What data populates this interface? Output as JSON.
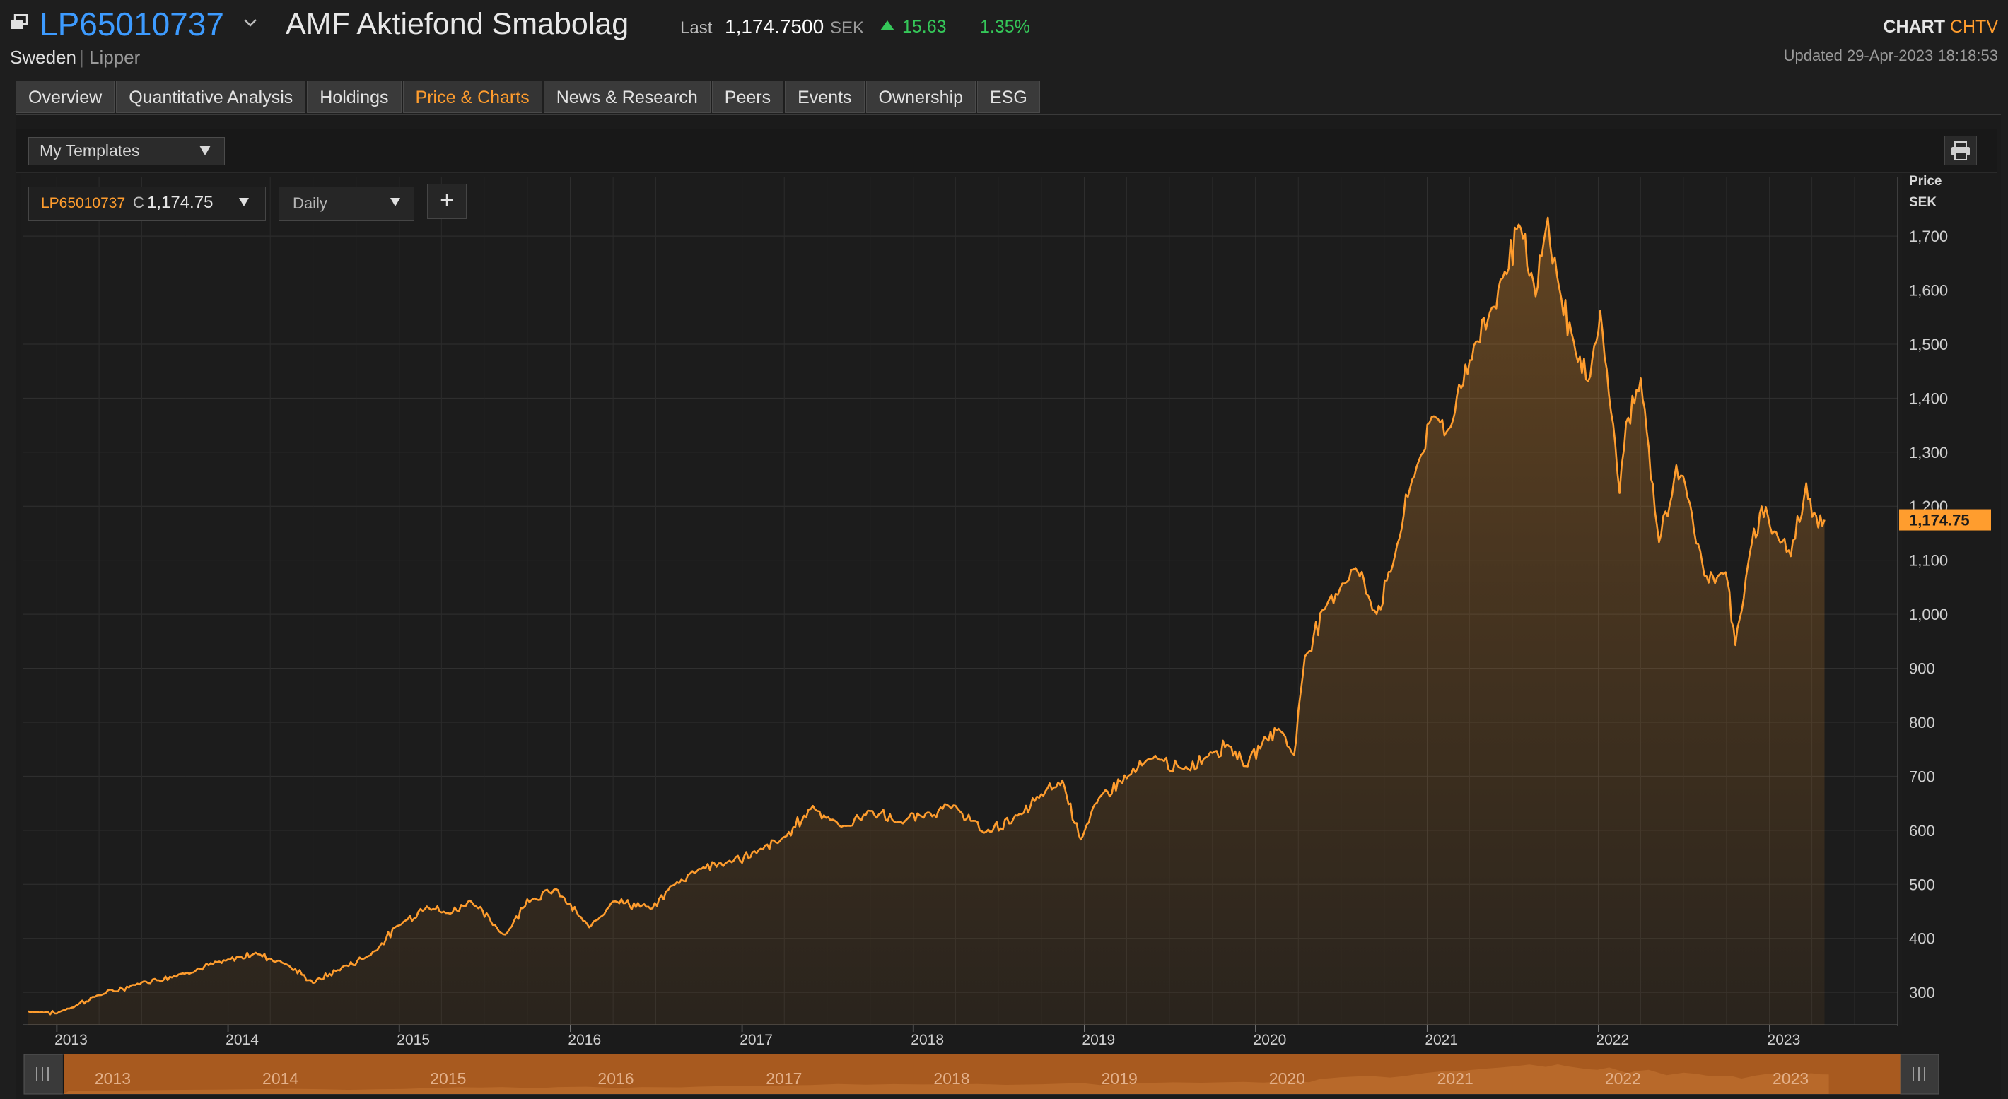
{
  "header": {
    "ric": "LP65010737",
    "name": "AMF Aktiefond Smabolag",
    "last_label": "Last",
    "last_value": "1,174.7500",
    "currency": "SEK",
    "change": "15.63",
    "change_pct": "1.35%",
    "country": "Sweden",
    "separator": "|",
    "source": "Lipper",
    "app_name": "CHART",
    "app_code": "CHTV",
    "updated": "Updated 29-Apr-2023   18:18:53",
    "up_color": "#35c759"
  },
  "tabs": [
    {
      "label": "Overview",
      "active": false
    },
    {
      "label": "Quantitative Analysis",
      "active": false
    },
    {
      "label": "Holdings",
      "active": false
    },
    {
      "label": "Price & Charts",
      "active": true
    },
    {
      "label": "News & Research",
      "active": false
    },
    {
      "label": "Peers",
      "active": false
    },
    {
      "label": "Events",
      "active": false
    },
    {
      "label": "Ownership",
      "active": false
    },
    {
      "label": "ESG",
      "active": false
    }
  ],
  "toolbar": {
    "templates_label": "My Templates",
    "print_icon": "printer-icon"
  },
  "instrument": {
    "ric": "LP65010737",
    "field": "C",
    "value": "1,174.75",
    "frequency": "Daily",
    "add_label": "+"
  },
  "chart_data": {
    "type": "area",
    "title": "",
    "series": [
      {
        "name": "LP65010737",
        "color": "#ff9d2e"
      }
    ],
    "x": [
      "2012-11-01",
      "2013-01-01",
      "2013-04-01",
      "2013-07-01",
      "2013-10-01",
      "2014-01-01",
      "2014-03-01",
      "2014-05-01",
      "2014-07-01",
      "2014-09-01",
      "2014-11-01",
      "2015-01-01",
      "2015-03-01",
      "2015-04-15",
      "2015-06-01",
      "2015-08-15",
      "2015-10-01",
      "2015-12-01",
      "2016-02-10",
      "2016-04-01",
      "2016-06-24",
      "2016-08-01",
      "2016-10-01",
      "2016-12-01",
      "2017-02-01",
      "2017-04-01",
      "2017-06-01",
      "2017-08-01",
      "2017-10-01",
      "2017-12-01",
      "2018-02-01",
      "2018-04-01",
      "2018-06-01",
      "2018-08-20",
      "2018-10-01",
      "2018-11-15",
      "2018-12-24",
      "2019-02-01",
      "2019-04-01",
      "2019-06-01",
      "2019-08-01",
      "2019-10-01",
      "2019-11-01",
      "2019-12-15",
      "2020-01-20",
      "2020-02-19",
      "2020-03-23",
      "2020-04-15",
      "2020-06-01",
      "2020-08-01",
      "2020-09-15",
      "2020-10-15",
      "2020-11-30",
      "2021-01-15",
      "2021-02-20",
      "2021-03-05",
      "2021-04-15",
      "2021-05-10",
      "2021-06-15",
      "2021-07-15",
      "2021-08-20",
      "2021-09-15",
      "2021-10-05",
      "2021-11-18",
      "2021-12-10",
      "2022-01-05",
      "2022-02-15",
      "2022-03-01",
      "2022-04-01",
      "2022-05-10",
      "2022-06-16",
      "2022-07-15",
      "2022-08-15",
      "2022-09-29",
      "2022-10-20",
      "2022-11-20",
      "2022-12-15",
      "2023-01-15",
      "2023-02-15",
      "2023-03-20",
      "2023-04-10",
      "2023-04-28"
    ],
    "values": [
      265,
      262,
      295,
      318,
      335,
      360,
      372,
      355,
      318,
      345,
      370,
      425,
      460,
      445,
      470,
      405,
      470,
      490,
      420,
      470,
      455,
      495,
      530,
      540,
      560,
      585,
      645,
      605,
      635,
      615,
      630,
      645,
      595,
      630,
      665,
      690,
      585,
      660,
      700,
      735,
      710,
      745,
      760,
      720,
      770,
      790,
      740,
      920,
      1020,
      1090,
      1000,
      1080,
      1250,
      1370,
      1340,
      1410,
      1500,
      1550,
      1630,
      1720,
      1590,
      1730,
      1620,
      1470,
      1430,
      1560,
      1230,
      1350,
      1430,
      1130,
      1270,
      1200,
      1070,
      1080,
      945,
      1110,
      1200,
      1150,
      1110,
      1240,
      1180,
      1174.75
    ],
    "ylim": [
      240,
      1810
    ],
    "y_ticks": [
      300,
      400,
      500,
      600,
      700,
      800,
      900,
      1000,
      1100,
      1200,
      1300,
      1400,
      1500,
      1600,
      1700
    ],
    "y_tick_labels": [
      "300",
      "400",
      "500",
      "600",
      "700",
      "800",
      "900",
      "1,000",
      "1,100",
      "1,200",
      "1,300",
      "1,400",
      "1,500",
      "1,600",
      "1,700"
    ],
    "x_tick_labels": [
      "2013",
      "2014",
      "2015",
      "2016",
      "2017",
      "2018",
      "2019",
      "2020",
      "2021",
      "2022",
      "2023"
    ],
    "x_tick_dates": [
      "2013-01-01",
      "2014-01-01",
      "2015-01-01",
      "2016-01-01",
      "2017-01-01",
      "2018-01-01",
      "2019-01-01",
      "2020-01-01",
      "2021-01-01",
      "2022-01-01",
      "2023-01-01"
    ],
    "axis_title": [
      "Price",
      "SEK"
    ],
    "last_label": "1,174.75",
    "grid": true,
    "legend": "none"
  },
  "navigator": {
    "labels": [
      "2013",
      "2014",
      "2015",
      "2016",
      "2017",
      "2018",
      "2019",
      "2020",
      "2021",
      "2022",
      "2023"
    ],
    "fill_color": "#a85a1f"
  }
}
